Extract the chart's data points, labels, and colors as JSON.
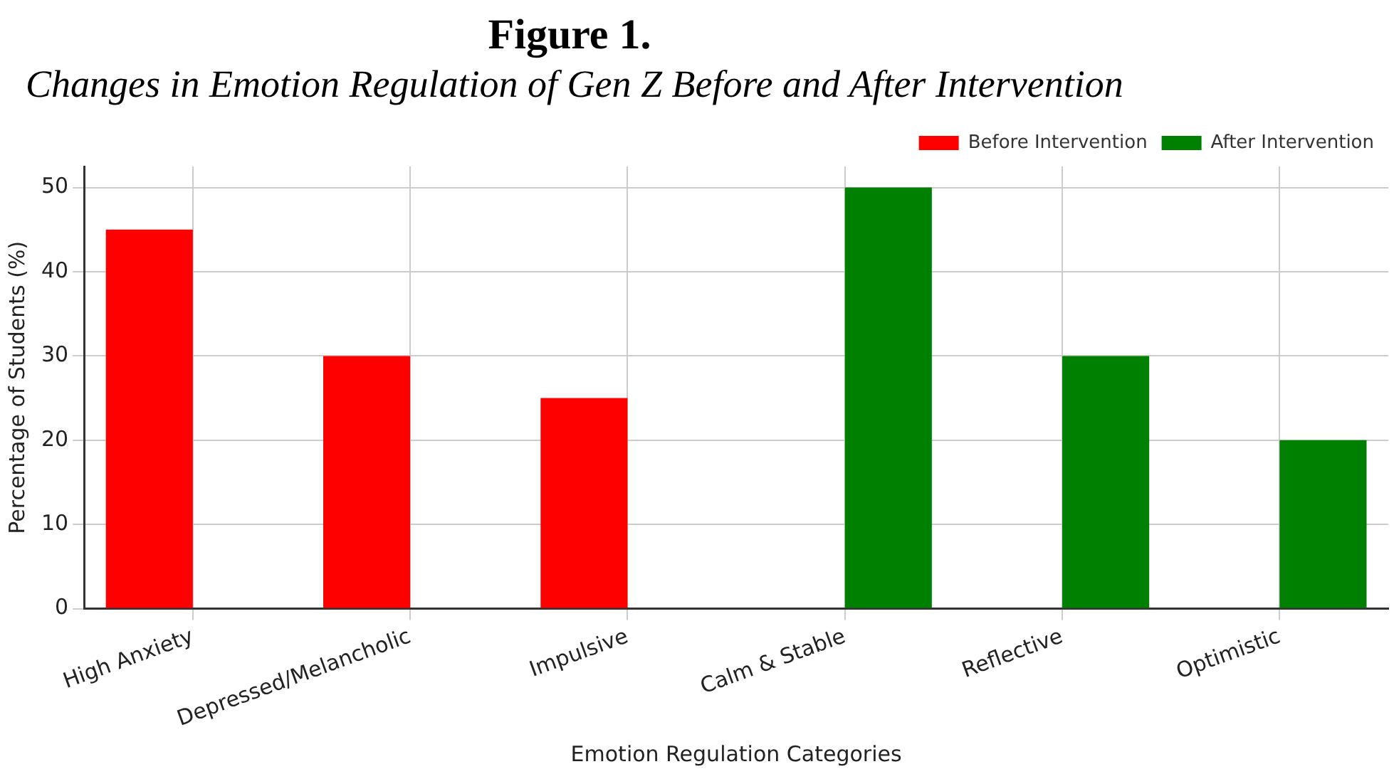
{
  "chart_data": {
    "type": "bar",
    "title": "Figure 1.",
    "subtitle": "Changes in Emotion Regulation of Gen Z Before and After Intervention",
    "xlabel": "Emotion Regulation Categories",
    "ylabel": "Percentage of Students (%)",
    "categories": [
      "High Anxiety",
      "Depressed/Melancholic",
      "Impulsive",
      "Calm & Stable",
      "Reflective",
      "Optimistic"
    ],
    "series": [
      {
        "name": "Before Intervention",
        "color": "#ff0000",
        "values": [
          45,
          30,
          25,
          null,
          null,
          null
        ]
      },
      {
        "name": "After Intervention",
        "color": "#008000",
        "values": [
          null,
          null,
          null,
          50,
          30,
          20
        ]
      }
    ],
    "ylim": [
      0,
      52.5
    ],
    "yticks": [
      0,
      10,
      20,
      30,
      40,
      50
    ],
    "grid": true,
    "legend": "top right"
  }
}
